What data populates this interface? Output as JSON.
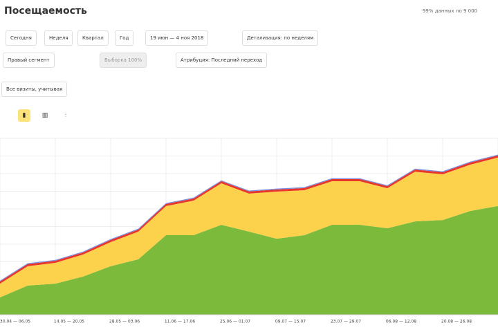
{
  "header": {
    "title": "Посещаемость",
    "note": "99% данных по 9 000"
  },
  "toolbar": {
    "periods": [
      "Сегодня",
      "Неделя",
      "Квартал",
      "Год"
    ],
    "date_range": "19 июн — 4 ноя 2018",
    "detail": "Детализация: по неделям"
  },
  "filters": {
    "segment": "Правый сегмент",
    "sample": "Выборка 100%",
    "attribution": "Атрибуция: Последний переход"
  },
  "visits": "Все визиты, учитывая",
  "chart_data": {
    "type": "area",
    "stacked": true,
    "grid": true,
    "categories": [
      "30.04 — 06.05",
      null,
      "14.05 — 20.05",
      null,
      "28.05 — 03.06",
      null,
      "11.06 — 17.06",
      null,
      "25.06 — 01.07",
      null,
      "09.07 — 15.07",
      null,
      "23.07 — 29.07",
      null,
      "06.08 — 12.08",
      null,
      "20.08 — 26.08",
      null,
      null
    ],
    "ylim": [
      0,
      100
    ],
    "series": [
      {
        "color": "#7cba3b",
        "values": [
          9.8,
          16.5,
          17.6,
          21.6,
          27.5,
          31.4,
          45.1,
          45.1,
          51,
          47.1,
          43.1,
          45.1,
          51,
          51,
          49,
          52.9,
          53.7,
          58.8,
          61.6
        ]
      },
      {
        "color": "#fcd24c",
        "values": [
          7.8,
          11,
          11.8,
          12.5,
          13.7,
          15.7,
          16.5,
          19.6,
          23.5,
          21.6,
          26.7,
          25.5,
          24.7,
          24.7,
          22.7,
          28.2,
          25.9,
          26.3,
          27.5
        ]
      },
      {
        "color": "#e8362b",
        "values": [
          1.2,
          1.2,
          1.2,
          1.2,
          1.2,
          1.2,
          1.2,
          1.2,
          1.2,
          1.2,
          1.2,
          1.2,
          1.2,
          1.2,
          1.2,
          1.2,
          1.2,
          1.2,
          1.2
        ]
      },
      {
        "color": "#7a8fe0",
        "values": [
          0.5,
          0.5,
          0.5,
          0.5,
          0.5,
          0.5,
          0.5,
          0.5,
          0.5,
          0.5,
          0.5,
          0.5,
          0.5,
          0.5,
          0.5,
          0.5,
          0.5,
          0.5,
          0.5
        ]
      }
    ]
  }
}
